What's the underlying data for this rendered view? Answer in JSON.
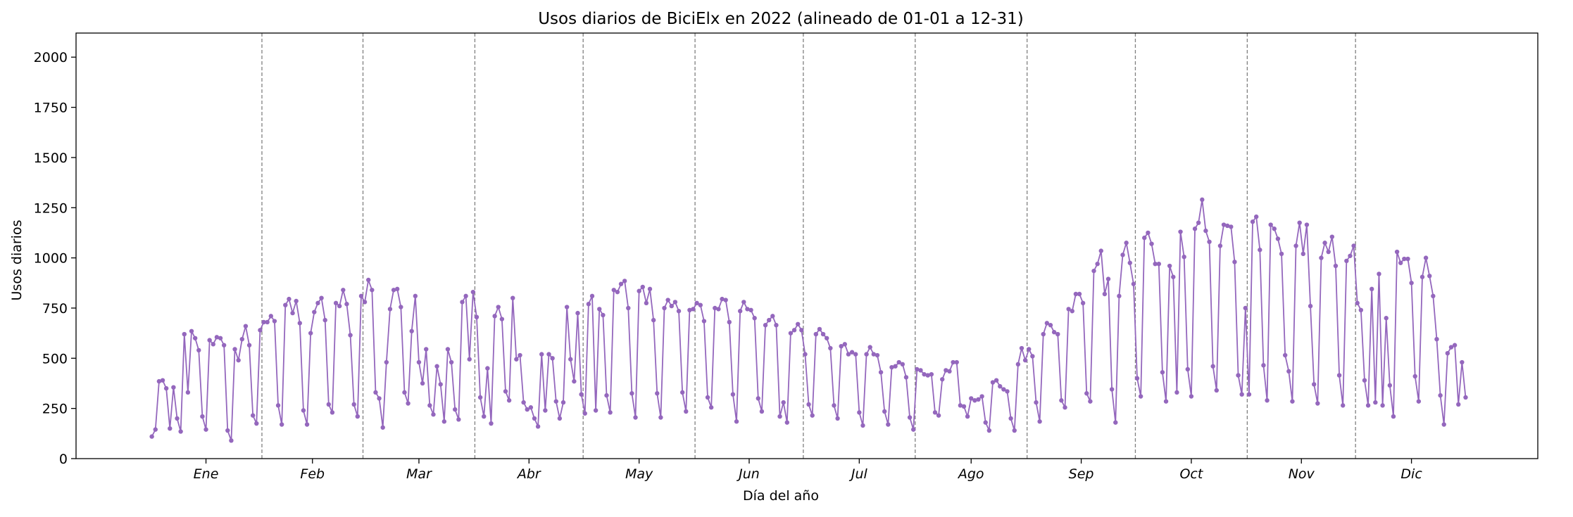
{
  "chart_data": {
    "type": "line",
    "title": "Usos diarios de BiciElx en 2022 (alineado de 01-01 a 12-31)",
    "xlabel": "Día del año",
    "ylabel": "Usos diarios",
    "xlim": [
      -20,
      385
    ],
    "ylim": [
      0,
      2120
    ],
    "y_ticks": [
      0,
      250,
      500,
      750,
      1000,
      1250,
      1500,
      1750,
      2000
    ],
    "months": [
      {
        "label": "Ene",
        "center": 16
      },
      {
        "label": "Feb",
        "center": 45.5
      },
      {
        "label": "Mar",
        "center": 75
      },
      {
        "label": "Abr",
        "center": 105.5
      },
      {
        "label": "May",
        "center": 136
      },
      {
        "label": "Jun",
        "center": 166.5
      },
      {
        "label": "Jul",
        "center": 197
      },
      {
        "label": "Ago",
        "center": 228
      },
      {
        "label": "Sep",
        "center": 258.5
      },
      {
        "label": "Oct",
        "center": 289
      },
      {
        "label": "Nov",
        "center": 319.5
      },
      {
        "label": "Dic",
        "center": 350
      }
    ],
    "month_boundaries": [
      31.5,
      59.5,
      90.5,
      120.5,
      151.5,
      181.5,
      212.5,
      243.5,
      273.5,
      304.5,
      334.5
    ],
    "grid": false,
    "line_color": "#9467bd",
    "grid_line_color": "#808080",
    "series": [
      {
        "values": [
          110,
          145,
          385,
          390,
          350,
          150,
          355,
          200,
          135,
          620,
          330,
          635,
          600,
          540,
          210,
          145,
          590,
          570,
          605,
          600,
          565,
          140,
          90,
          545,
          490,
          595,
          660,
          565,
          215,
          175,
          640,
          680,
          680,
          710,
          685,
          265,
          170,
          765,
          795,
          725,
          785,
          675,
          240,
          170,
          625,
          730,
          775,
          800,
          690,
          270,
          230,
          775,
          760,
          840,
          770,
          615,
          270,
          210,
          810,
          780,
          890,
          840,
          330,
          300,
          155,
          480,
          745,
          840,
          845,
          755,
          330,
          275,
          635,
          810,
          480,
          375,
          545,
          265,
          220,
          460,
          370,
          185,
          545,
          480,
          245,
          195,
          780,
          810,
          495,
          830,
          705,
          305,
          210,
          450,
          175,
          710,
          755,
          695,
          335,
          290,
          800,
          495,
          515,
          280,
          245,
          255,
          200,
          160,
          520,
          240,
          520,
          500,
          285,
          200,
          280,
          755,
          495,
          385,
          725,
          320,
          225,
          770,
          810,
          240,
          745,
          715,
          315,
          230,
          840,
          830,
          870,
          885,
          750,
          325,
          205,
          835,
          855,
          775,
          845,
          690,
          325,
          205,
          750,
          790,
          760,
          780,
          735,
          330,
          235,
          740,
          745,
          775,
          765,
          685,
          305,
          255,
          750,
          745,
          795,
          790,
          680,
          320,
          185,
          735,
          780,
          745,
          740,
          700,
          300,
          235,
          665,
          690,
          710,
          665,
          210,
          280,
          180,
          625,
          640,
          670,
          640,
          520,
          270,
          215,
          620,
          645,
          620,
          600,
          550,
          265,
          200,
          560,
          570,
          520,
          530,
          520,
          230,
          165,
          520,
          555,
          520,
          515,
          430,
          235,
          170,
          455,
          460,
          480,
          470,
          405,
          205,
          145,
          445,
          440,
          420,
          415,
          420,
          230,
          215,
          395,
          440,
          435,
          480,
          480,
          265,
          260,
          210,
          300,
          290,
          295,
          310,
          180,
          140,
          380,
          390,
          360,
          345,
          335,
          200,
          140,
          470,
          550,
          490,
          545,
          510,
          280,
          185,
          620,
          675,
          665,
          630,
          620,
          290,
          255,
          745,
          735,
          820,
          820,
          775,
          325,
          285,
          935,
          970,
          1035,
          820,
          895,
          345,
          180,
          810,
          1015,
          1075,
          975,
          870,
          400,
          310,
          1100,
          1125,
          1070,
          970,
          970,
          430,
          285,
          960,
          905,
          330,
          1130,
          1005,
          445,
          310,
          1145,
          1175,
          1290,
          1135,
          1080,
          460,
          340,
          1060,
          1165,
          1160,
          1155,
          980,
          415,
          320,
          750,
          320,
          1180,
          1205,
          1040,
          465,
          290,
          1165,
          1145,
          1095,
          1020,
          515,
          435,
          285,
          1060,
          1175,
          1020,
          1165,
          760,
          370,
          275,
          1000,
          1075,
          1030,
          1105,
          960,
          415,
          265,
          985,
          1010,
          1060,
          775,
          740,
          390,
          265,
          845,
          280,
          920,
          265,
          700,
          365,
          210,
          1030,
          975,
          995,
          995,
          875,
          410,
          285,
          905,
          1000,
          910,
          810,
          595,
          315,
          170,
          525,
          555,
          565,
          270,
          480,
          305
        ]
      }
    ]
  }
}
